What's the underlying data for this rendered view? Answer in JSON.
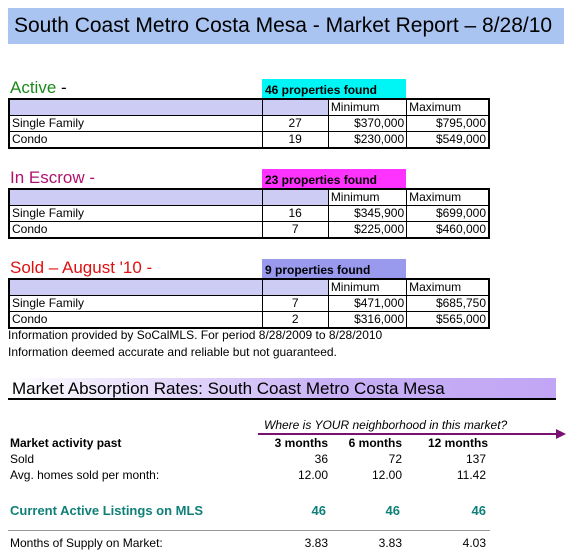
{
  "title": "South Coast Metro Costa Mesa - Market Report – 8/28/10",
  "colors": {
    "title_bg": "#a9c4f0",
    "active_green": "#1a8a1a",
    "escrow_magenta": "#b0126e",
    "sold_red": "#e01010",
    "active_badge": "#00f5f5",
    "escrow_badge": "#ff33ff",
    "sold_badge": "#9999ee",
    "table_header": "#ccccf5",
    "teal": "#0f7f78",
    "arrow": "#7a1070"
  },
  "sections": [
    {
      "heading": "Active",
      "suffix": " -",
      "badge": "46 properties found",
      "col_min": "Minimum",
      "col_max": "Maximum",
      "rows": [
        {
          "type": "Single Family",
          "count": "27",
          "min": "$370,000",
          "max": "$795,000"
        },
        {
          "type": "Condo",
          "count": "19",
          "min": "$230,000",
          "max": "$549,000"
        }
      ]
    },
    {
      "heading": "In Escrow -",
      "suffix": "",
      "badge": "23 properties found",
      "col_min": "Minimum",
      "col_max": "Maximum",
      "rows": [
        {
          "type": "Single Family",
          "count": "16",
          "min": "$345,900",
          "max": "$699,000"
        },
        {
          "type": "Condo",
          "count": "7",
          "min": "$225,000",
          "max": "$460,000"
        }
      ]
    },
    {
      "heading": "Sold – August '10 -",
      "suffix": "",
      "badge": "9 properties found",
      "col_min": "Minimum",
      "col_max": "Maximum",
      "rows": [
        {
          "type": "Single Family",
          "count": "7",
          "min": "$471,000",
          "max": "$685,750"
        },
        {
          "type": "Condo",
          "count": "2",
          "min": "$316,000",
          "max": "$565,000"
        }
      ]
    }
  ],
  "info_line1": "Information provided by SoCalMLS.  For period 8/28/2009 to 8/28/2010",
  "info_line2": "Information deemed accurate and reliable but not guaranteed.",
  "absorption": {
    "title": "Market Absorption Rates:  South Coast Metro Costa Mesa",
    "question": "Where is YOUR neighborhood in this market?",
    "activity_label": "Market activity past",
    "periods": [
      "3 months",
      "6 months",
      "12 months"
    ],
    "sold_label": "Sold",
    "sold": [
      "36",
      "72",
      "137"
    ],
    "avg_label": "Avg. homes sold per month:",
    "avg": [
      "12.00",
      "12.00",
      "11.42"
    ],
    "active_label": "Current Active Listings on MLS",
    "active": [
      "46",
      "46",
      "46"
    ],
    "supply_label": "Months of Supply on Market:",
    "supply": [
      "3.83",
      "3.83",
      "4.03"
    ]
  }
}
